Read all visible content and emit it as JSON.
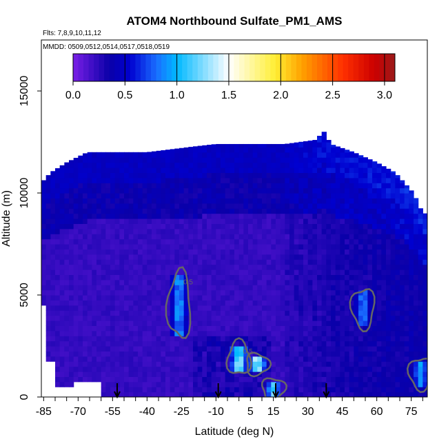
{
  "chart_data": {
    "type": "heatmap",
    "title": "ATOM4 Northbound Sulfate_PM1_AMS",
    "subtitle_flights": "Flts: 7,8,9,10,11,12",
    "subtitle_dates": "MMDD: 0509,0512,0514,0517,0518,0519",
    "xlabel": "Latitude (deg N)",
    "ylabel": "Altitude (m)",
    "xlim": [
      -86,
      82
    ],
    "ylim": [
      0,
      17500
    ],
    "x_ticks": [
      -85,
      -70,
      -55,
      -40,
      -25,
      -10,
      5,
      15,
      30,
      45,
      60,
      75
    ],
    "x_tick_labels": [
      "-85",
      "-70",
      "-55",
      "-40",
      "-25",
      "-10",
      "5",
      "15",
      "30",
      "45",
      "60",
      "75"
    ],
    "y_ticks": [
      0,
      5000,
      10000,
      15000
    ],
    "y_tick_labels": [
      "0",
      "5000",
      "10000",
      "15000"
    ],
    "colorbar": {
      "range": [
        0,
        3.1
      ],
      "ticks": [
        0,
        0.5,
        1.0,
        1.5,
        2.0,
        2.5,
        3.0
      ],
      "tick_labels": [
        "0.0",
        "0.5",
        "1.0",
        "1.5",
        "2.0",
        "2.5",
        "3.0"
      ],
      "colors": [
        "#7a1fe6",
        "#0a00a8",
        "#0000d0",
        "#1a6cff",
        "#00b8ff",
        "#ffffff",
        "#ffee33",
        "#ffa200",
        "#ff3000",
        "#cc0000",
        "#9b1a1a"
      ]
    },
    "profile_arrows_lat": [
      -53,
      -9,
      16,
      38
    ],
    "contour_level_labels": [
      "0.5",
      "0.5"
    ],
    "data_extent": {
      "top_altitude_by_latitude": [
        [
          -86,
          10500
        ],
        [
          -82,
          11000
        ],
        [
          -75,
          11500
        ],
        [
          -66,
          12000
        ],
        [
          -58,
          12000
        ],
        [
          -40,
          12000
        ],
        [
          -18,
          12300
        ],
        [
          -10,
          12400
        ],
        [
          0,
          12400
        ],
        [
          20,
          12400
        ],
        [
          33,
          12600
        ],
        [
          37,
          13000
        ],
        [
          40,
          12400
        ],
        [
          50,
          12000
        ],
        [
          60,
          11500
        ],
        [
          68,
          11000
        ],
        [
          72,
          10500
        ],
        [
          76,
          10000
        ],
        [
          80,
          9000
        ]
      ]
    },
    "enhancements": [
      {
        "lat": -26,
        "alt_min": 3000,
        "alt_max": 6000,
        "value": 1.0
      },
      {
        "lat": 0,
        "alt_min": 1200,
        "alt_max": 2600,
        "value": 1.4
      },
      {
        "lat": 8,
        "alt_min": 1200,
        "alt_max": 2000,
        "value": 1.5
      },
      {
        "lat": 15,
        "alt_min": 0,
        "alt_max": 800,
        "value": 1.2
      },
      {
        "lat": 54,
        "alt_min": 3500,
        "alt_max": 5200,
        "value": 0.9
      },
      {
        "lat": 79,
        "alt_min": 500,
        "alt_max": 1800,
        "value": 1.0
      }
    ]
  }
}
